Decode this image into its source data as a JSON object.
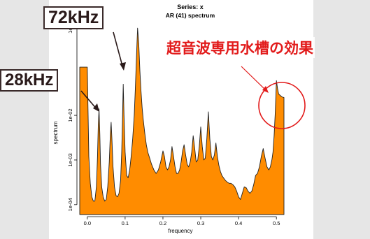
{
  "chart_data": {
    "type": "area",
    "title": "Series: x",
    "subtitle": "AR (41) spectrum",
    "xlabel": "frequency",
    "ylabel": "spectrum",
    "log_y": true,
    "xlim": [
      -0.02,
      0.52
    ],
    "ylim": [
      6e-05,
      1.3
    ],
    "x_ticks": [
      0.0,
      0.1,
      0.2,
      0.3,
      0.4,
      0.5
    ],
    "x_tick_labels": [
      "0.0",
      "0.1",
      "0.2",
      "0.3",
      "0.4",
      "0.5"
    ],
    "y_ticks": [
      0.0001,
      0.001,
      0.01,
      1
    ],
    "y_tick_labels": [
      "1e-04",
      "1e-03",
      "1e-02",
      "1e+00"
    ],
    "fill_color": "#ff8c00",
    "series": [
      {
        "x": [
          -0.02,
          0.0,
          0.004,
          0.008,
          0.012,
          0.016,
          0.02,
          0.024,
          0.027,
          0.029,
          0.031,
          0.033,
          0.035,
          0.038,
          0.042,
          0.046,
          0.05,
          0.054,
          0.058,
          0.061,
          0.063,
          0.065,
          0.068,
          0.072,
          0.076,
          0.08,
          0.084,
          0.088,
          0.091,
          0.093,
          0.095,
          0.097,
          0.1,
          0.104,
          0.108,
          0.112,
          0.116,
          0.12,
          0.124,
          0.127,
          0.13,
          0.133,
          0.136,
          0.139,
          0.142,
          0.145,
          0.148,
          0.152,
          0.156,
          0.16,
          0.165,
          0.17,
          0.176,
          0.182,
          0.188,
          0.194,
          0.2,
          0.204,
          0.208,
          0.212,
          0.216,
          0.22,
          0.224,
          0.228,
          0.232,
          0.236,
          0.24,
          0.244,
          0.248,
          0.252,
          0.256,
          0.26,
          0.264,
          0.268,
          0.272,
          0.276,
          0.28,
          0.284,
          0.288,
          0.292,
          0.296,
          0.3,
          0.304,
          0.308,
          0.312,
          0.316,
          0.32,
          0.324,
          0.328,
          0.332,
          0.336,
          0.34,
          0.344,
          0.348,
          0.352,
          0.356,
          0.36,
          0.365,
          0.37,
          0.375,
          0.38,
          0.385,
          0.39,
          0.395,
          0.4,
          0.405,
          0.41,
          0.415,
          0.42,
          0.425,
          0.43,
          0.435,
          0.44,
          0.445,
          0.45,
          0.455,
          0.46,
          0.465,
          0.47,
          0.475,
          0.48,
          0.484,
          0.488,
          0.491,
          0.494,
          0.497,
          0.5,
          0.503,
          0.506,
          0.51,
          0.514,
          0.52
        ],
        "y": [
          0.12,
          0.12,
          0.0012,
          0.0003,
          0.00015,
          0.00012,
          0.00012,
          0.00025,
          0.0012,
          0.006,
          0.014,
          0.004,
          0.0008,
          0.00025,
          0.00015,
          0.00012,
          0.00013,
          0.00025,
          0.0009,
          0.004,
          0.007,
          0.003,
          0.0007,
          0.00025,
          0.00016,
          0.00015,
          0.00018,
          0.00035,
          0.0015,
          0.008,
          0.05,
          0.01,
          0.0015,
          0.00045,
          0.0004,
          0.0006,
          0.0012,
          0.003,
          0.01,
          0.04,
          0.2,
          0.9,
          0.4,
          0.1,
          0.035,
          0.015,
          0.008,
          0.004,
          0.0022,
          0.0015,
          0.0011,
          0.0008,
          0.0006,
          0.0005,
          0.0006,
          0.0009,
          0.0016,
          0.0012,
          0.0007,
          0.0006,
          0.0007,
          0.001,
          0.002,
          0.0012,
          0.0007,
          0.0005,
          0.0005,
          0.0006,
          0.0009,
          0.0016,
          0.0022,
          0.0013,
          0.0008,
          0.0007,
          0.0009,
          0.0015,
          0.0035,
          0.0018,
          0.0009,
          0.001,
          0.002,
          0.0055,
          0.002,
          0.001,
          0.0011,
          0.003,
          0.012,
          0.003,
          0.0012,
          0.001,
          0.0013,
          0.0024,
          0.0012,
          0.00075,
          0.00055,
          0.00045,
          0.0004,
          0.00035,
          0.00032,
          0.0003,
          0.0003,
          0.00028,
          0.00025,
          0.0002,
          0.00015,
          0.00013,
          0.00018,
          0.00025,
          0.00024,
          0.0002,
          0.00018,
          0.0002,
          0.00028,
          0.00045,
          0.0005,
          0.0007,
          0.0012,
          0.0018,
          0.0011,
          0.0007,
          0.0006,
          0.0007,
          0.001,
          0.0015,
          0.0035,
          0.012,
          0.06,
          0.04,
          0.03,
          0.028,
          0.026,
          0.025
        ]
      }
    ]
  },
  "annotations": {
    "label_72k": "72kHz",
    "label_28k": "28kHz",
    "note_jp": "超音波専用水槽の効果"
  },
  "colors": {
    "annotation_red": "#e21b1b",
    "box_border": "#3a2a2a",
    "axis": "#000000"
  }
}
